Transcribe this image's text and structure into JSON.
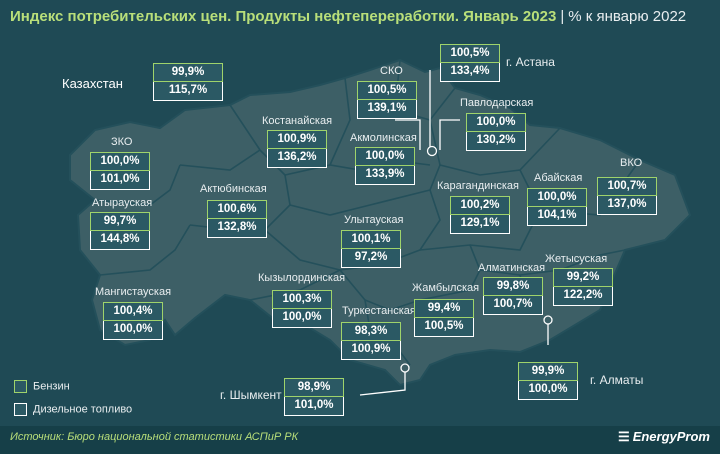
{
  "title": {
    "main": "Индекс потребительских цен. Продукты нефтепереработки. Январь 2023",
    "separator": "|",
    "sub": "% к январю 2022"
  },
  "country": {
    "label": "Казахстан",
    "benzin": "99,9%",
    "dizel": "115,7%"
  },
  "regions": [
    {
      "id": "zko",
      "name": "ЗКО",
      "benzin": "100,0%",
      "dizel": "101,0%"
    },
    {
      "id": "atyrau",
      "name": "Атырауская",
      "benzin": "99,7%",
      "dizel": "144,8%"
    },
    {
      "id": "mangistau",
      "name": "Мангистауская",
      "benzin": "100,4%",
      "dizel": "100,0%"
    },
    {
      "id": "aktobe",
      "name": "Актюбинская",
      "benzin": "100,6%",
      "dizel": "132,8%"
    },
    {
      "id": "kostanay",
      "name": "Костанайская",
      "benzin": "100,9%",
      "dizel": "136,2%"
    },
    {
      "id": "sko",
      "name": "СКО",
      "benzin": "100,5%",
      "dizel": "139,1%"
    },
    {
      "id": "akmola",
      "name": "Акмолинская",
      "benzin": "100,0%",
      "dizel": "133,9%"
    },
    {
      "id": "astana",
      "name": "г. Астана",
      "benzin": "100,5%",
      "dizel": "133,4%"
    },
    {
      "id": "pavlodar",
      "name": "Павлодарская",
      "benzin": "100,0%",
      "dizel": "130,2%"
    },
    {
      "id": "karaganda",
      "name": "Карагандинская",
      "benzin": "100,2%",
      "dizel": "129,1%"
    },
    {
      "id": "abay",
      "name": "Абайская",
      "benzin": "100,0%",
      "dizel": "104,1%"
    },
    {
      "id": "vko",
      "name": "ВКО",
      "benzin": "100,7%",
      "dizel": "137,0%"
    },
    {
      "id": "ulytau",
      "name": "Улытауская",
      "benzin": "100,1%",
      "dizel": "97,2%"
    },
    {
      "id": "kyzylorda",
      "name": "Кызылординская",
      "benzin": "100,3%",
      "dizel": "100,0%"
    },
    {
      "id": "turkestan",
      "name": "Туркестанская",
      "benzin": "98,3%",
      "dizel": "100,9%"
    },
    {
      "id": "shymkent",
      "name": "г. Шымкент",
      "benzin": "98,9%",
      "dizel": "101,0%"
    },
    {
      "id": "zhambyl",
      "name": "Жамбылская",
      "benzin": "99,4%",
      "dizel": "100,5%"
    },
    {
      "id": "almaty_obl",
      "name": "Алматинская",
      "benzin": "99,8%",
      "dizel": "100,7%"
    },
    {
      "id": "zhetysu",
      "name": "Жетысуская",
      "benzin": "99,2%",
      "dizel": "122,2%"
    },
    {
      "id": "almaty",
      "name": "г. Алматы",
      "benzin": "99,9%",
      "dizel": "100,0%"
    }
  ],
  "legend": {
    "benzin": "Бензин",
    "dizel": "Дизельное топливо"
  },
  "footer": {
    "source": "Источник: Бюро национальной статистики АСПиР РК",
    "brand": "EnergyProm"
  },
  "colors": {
    "background": "#1f4a55",
    "map_fill": "#3d5f66",
    "title_accent": "#b9df7a",
    "benzin_border": "#9fd36b",
    "dizel_border": "#ffffff"
  }
}
